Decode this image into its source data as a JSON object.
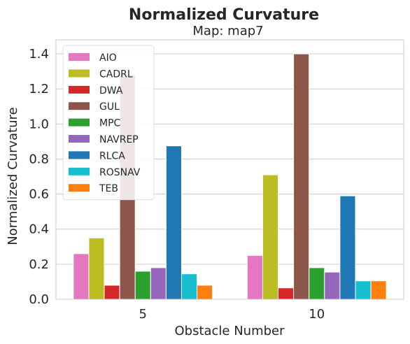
{
  "chart_data": {
    "type": "bar",
    "title": "Normalized Curvature",
    "subtitle": "Map: map7",
    "xlabel": "Obstacle Number",
    "ylabel": "Normalized Curvature",
    "categories": [
      "5",
      "10"
    ],
    "ylim": [
      0,
      1.48
    ],
    "yticks": [
      "0.0",
      "0.2",
      "0.4",
      "0.6",
      "0.8",
      "1.0",
      "1.2",
      "1.4"
    ],
    "grid": true,
    "legend_position": "top-left",
    "series": [
      {
        "name": "AIO",
        "color": "#e377c2",
        "values": [
          0.26,
          0.25
        ]
      },
      {
        "name": "CADRL",
        "color": "#bcbd22",
        "values": [
          0.35,
          0.71
        ]
      },
      {
        "name": "DWA",
        "color": "#d62728",
        "values": [
          0.08,
          0.065
        ]
      },
      {
        "name": "GUL",
        "color": "#8c564b",
        "values": [
          1.28,
          1.4
        ]
      },
      {
        "name": "MPC",
        "color": "#2ca02c",
        "values": [
          0.16,
          0.18
        ]
      },
      {
        "name": "NAVREP",
        "color": "#9467bd",
        "values": [
          0.18,
          0.155
        ]
      },
      {
        "name": "RLCA",
        "color": "#1f77b4",
        "values": [
          0.875,
          0.59
        ]
      },
      {
        "name": "ROSNAV",
        "color": "#17becf",
        "values": [
          0.145,
          0.105
        ]
      },
      {
        "name": "TEB",
        "color": "#ff7f0e",
        "values": [
          0.08,
          0.105
        ]
      }
    ]
  }
}
